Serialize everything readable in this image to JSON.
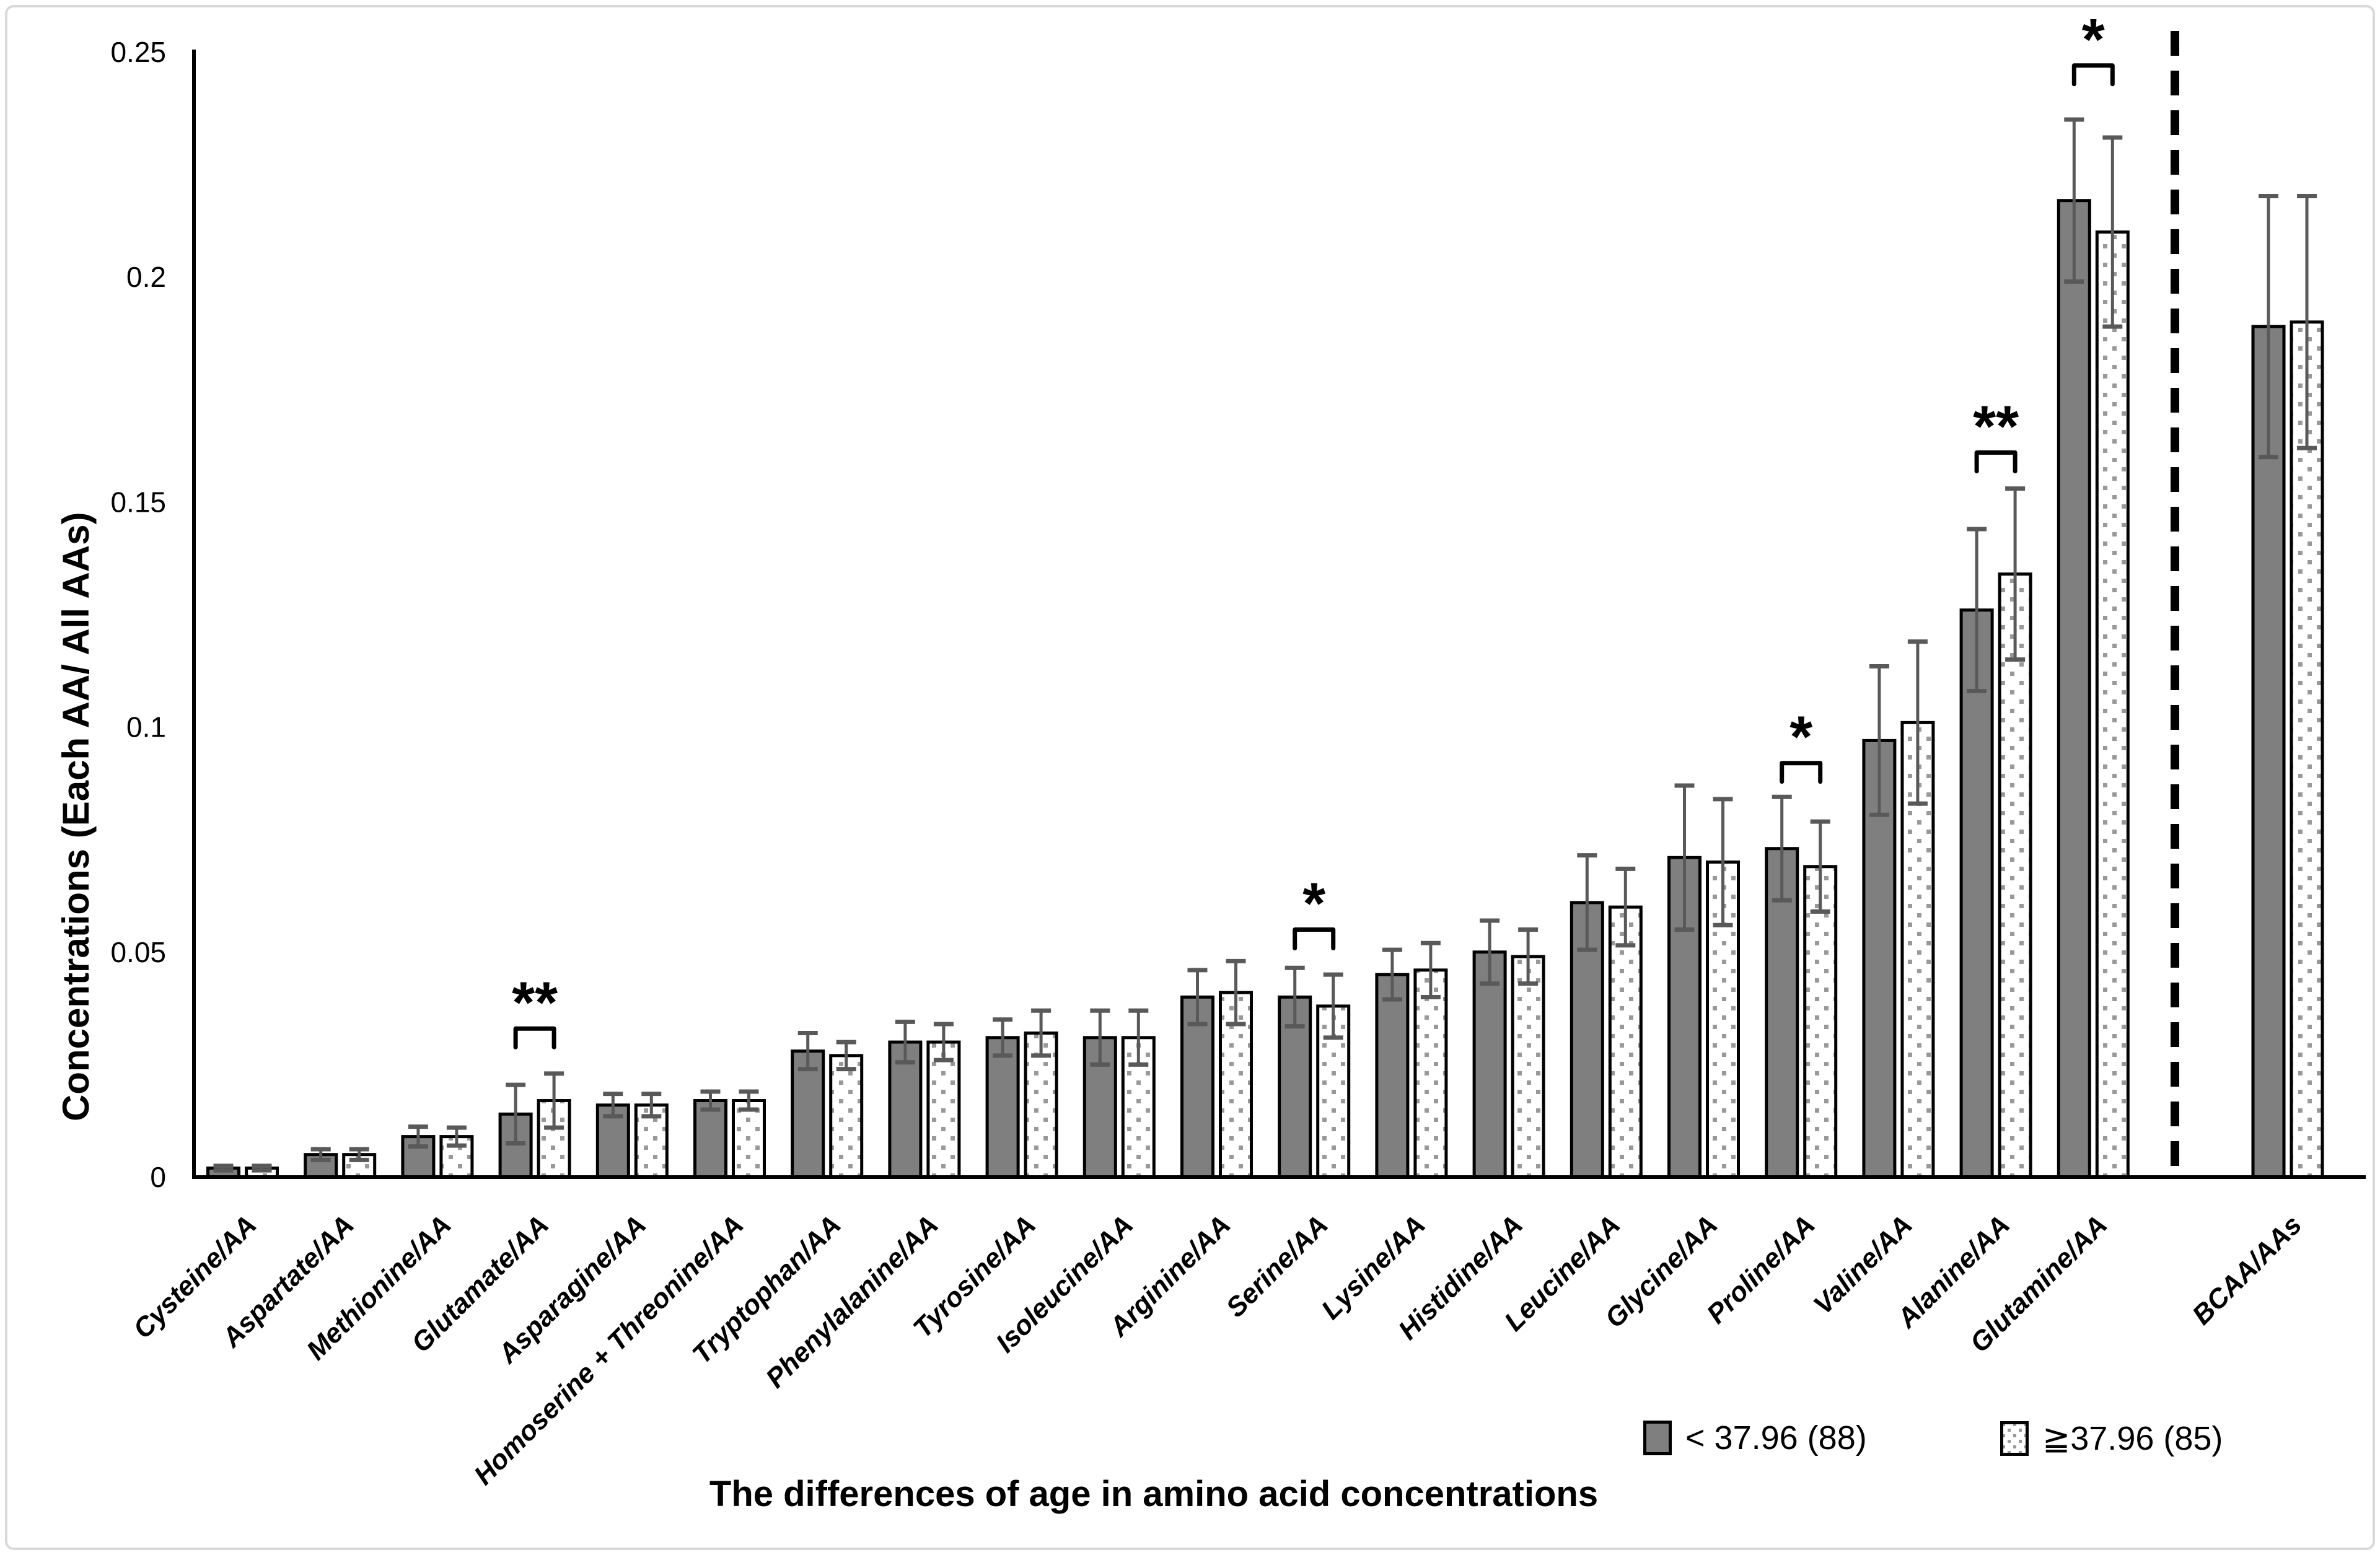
{
  "figure": {
    "y_axis_label": "Concentrations (Each AA/ All AAs)",
    "x_axis_title": "The differences of age  in amino acid concentrations",
    "legend": {
      "items": [
        {
          "label": "< 37.96 (88)",
          "swatch": "solid-gray"
        },
        {
          "label": "≧37.96 (85)",
          "swatch": "dotted"
        }
      ]
    }
  },
  "chart_data": {
    "type": "bar",
    "title": "",
    "xlabel": "The differences of age  in amino acid concentrations",
    "ylabel": "Concentrations (Each AA/ All AAs)",
    "ylim": [
      0,
      0.25
    ],
    "yticks": [
      0,
      0.05,
      0.1,
      0.15,
      0.2,
      0.25
    ],
    "ytick_labels": [
      "0",
      "0.05",
      "0.1",
      "0.15",
      "0.2",
      "0.25"
    ],
    "grid": false,
    "legend_position": "bottom-right",
    "bar_colors": {
      "solid_fill": "#7f7f7f",
      "dot_color": "#999999",
      "bar_stroke": "#000000"
    },
    "error_bar_color": "#595959",
    "separator": {
      "after_category": "Glutamine/AA",
      "style": "dashed-vertical-line"
    },
    "categories": [
      "Cysteine/AA",
      "Aspartate/AA",
      "Methionine/AA",
      "Glutamate/AA",
      "Asparagine/AA",
      "Homoserine + Threonine/AA",
      "Tryptophan/AA",
      "Phenylalanine/AA",
      "Tyrosine/AA",
      "Isoleucine/AA",
      "Arginine/AA",
      "Serine/AA",
      "Lysine/AA",
      "Histidine/AA",
      "Leucine/AA",
      "Glycine/AA",
      "Proline/AA",
      "Valine/AA",
      "Alanine/AA",
      "Glutamine/AA",
      "BCAA/AAs"
    ],
    "series": [
      {
        "name": "< 37.96 (88)",
        "style": "solid",
        "values": [
          0.002,
          0.005,
          0.009,
          0.014,
          0.016,
          0.017,
          0.028,
          0.03,
          0.031,
          0.031,
          0.04,
          0.04,
          0.045,
          0.05,
          0.061,
          0.071,
          0.073,
          0.097,
          0.126,
          0.217,
          0.189
        ],
        "errors": [
          0.0005,
          0.0012,
          0.0022,
          0.0065,
          0.0025,
          0.002,
          0.004,
          0.0045,
          0.004,
          0.006,
          0.006,
          0.0065,
          0.0055,
          0.007,
          0.0105,
          0.016,
          0.0115,
          0.0165,
          0.018,
          0.018,
          0.029
        ]
      },
      {
        "name": "≧37.96 (85)",
        "style": "dotted",
        "values": [
          0.002,
          0.005,
          0.009,
          0.017,
          0.016,
          0.017,
          0.027,
          0.03,
          0.032,
          0.031,
          0.041,
          0.038,
          0.046,
          0.049,
          0.06,
          0.07,
          0.069,
          0.101,
          0.134,
          0.21,
          0.19
        ],
        "errors": [
          0.0005,
          0.0012,
          0.002,
          0.006,
          0.0025,
          0.002,
          0.003,
          0.004,
          0.005,
          0.006,
          0.007,
          0.007,
          0.006,
          0.006,
          0.0085,
          0.014,
          0.01,
          0.018,
          0.019,
          0.021,
          0.028
        ]
      }
    ],
    "significance_brackets": [
      {
        "category": "Glutamate/AA",
        "label": "**",
        "y": 0.033
      },
      {
        "category": "Serine/AA",
        "label": "*",
        "y": 0.055
      },
      {
        "category": "Proline/AA",
        "label": "*",
        "y": 0.092
      },
      {
        "category": "Alanine/AA",
        "label": "**",
        "y": 0.161
      },
      {
        "category": "Glutamine/AA",
        "label": "*",
        "y": 0.247
      }
    ]
  }
}
